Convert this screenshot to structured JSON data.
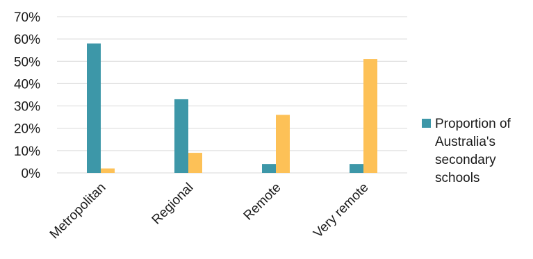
{
  "colors": {
    "series1": "#3d97a8",
    "series2": "#fdc157",
    "grid": "#d9d9d9",
    "text": "#1a1a1a"
  },
  "chart_data": {
    "type": "bar",
    "categories": [
      "Metropolitan",
      "Regional",
      "Remote",
      "Very remote"
    ],
    "series": [
      {
        "name": "Proportion of Australia's secondary schools",
        "values": [
          58,
          33,
          4,
          4
        ],
        "color": "#3d97a8"
      },
      {
        "values": [
          2,
          9,
          26,
          51
        ],
        "color": "#fdc157"
      }
    ],
    "ylim": [
      0,
      70
    ],
    "yticks": [
      0,
      10,
      20,
      30,
      40,
      50,
      60,
      70
    ],
    "ytick_labels": [
      "0%",
      "10%",
      "20%",
      "30%",
      "40%",
      "50%",
      "60%",
      "70%"
    ],
    "grid": true,
    "legend_position": "right"
  }
}
